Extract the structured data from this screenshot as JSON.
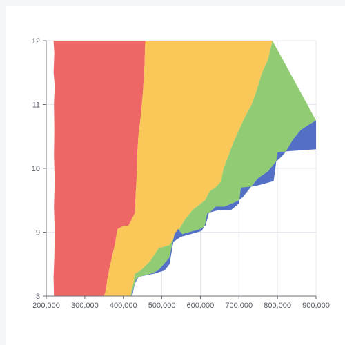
{
  "chart_data": {
    "type": "area",
    "title": "",
    "xlabel": "",
    "ylabel": "",
    "xlim": [
      200000,
      900000
    ],
    "ylim": [
      8,
      12
    ],
    "grid": true,
    "legend": "none",
    "x_ticks": [
      "200,000",
      "300,000",
      "400,000",
      "500,000",
      "600,000",
      "700,000",
      "800,000",
      "900,000"
    ],
    "x_tick_values": [
      200000,
      300000,
      400000,
      500000,
      600000,
      700000,
      800000,
      900000
    ],
    "y_ticks": [
      "8",
      "9",
      "10",
      "11",
      "12"
    ],
    "y_tick_values": [
      8,
      9,
      10,
      11,
      12
    ],
    "series": [
      {
        "color": "#ee6666",
        "left": [
          [
            219000,
            12
          ],
          [
            221000,
            11.8
          ],
          [
            219000,
            11.5
          ],
          [
            222000,
            11.3
          ],
          [
            220000,
            11
          ],
          [
            221000,
            10.6
          ],
          [
            220000,
            10.2
          ],
          [
            222000,
            9.8
          ],
          [
            220000,
            9.4
          ],
          [
            222000,
            9
          ],
          [
            221000,
            8.6
          ],
          [
            219000,
            8.3
          ],
          [
            220000,
            8
          ]
        ],
        "right": [
          [
            457000,
            12
          ],
          [
            455000,
            11.6
          ],
          [
            451000,
            11.2
          ],
          [
            445000,
            10.8
          ],
          [
            439000,
            10.5
          ],
          [
            436000,
            10.2
          ],
          [
            435000,
            9.9
          ],
          [
            432000,
            9.6
          ],
          [
            430000,
            9.3
          ],
          [
            413000,
            9.1
          ],
          [
            401000,
            9.1
          ],
          [
            385000,
            9.05
          ],
          [
            378000,
            8.8
          ],
          [
            370000,
            8.6
          ],
          [
            363000,
            8.4
          ],
          [
            358000,
            8.25
          ],
          [
            355000,
            8.1
          ],
          [
            350000,
            8
          ]
        ]
      },
      {
        "color": "#fac858",
        "right": [
          [
            787000,
            12
          ],
          [
            775000,
            11.7
          ],
          [
            760000,
            11.5
          ],
          [
            745000,
            11.2
          ],
          [
            733000,
            11
          ],
          [
            715000,
            10.8
          ],
          [
            700000,
            10.6
          ],
          [
            685000,
            10.4
          ],
          [
            673000,
            10.2
          ],
          [
            660000,
            10
          ],
          [
            654000,
            9.8
          ],
          [
            639000,
            9.7
          ],
          [
            625000,
            9.65
          ],
          [
            612000,
            9.5
          ],
          [
            580000,
            9.35
          ],
          [
            560000,
            9.2
          ],
          [
            545000,
            9.05
          ],
          [
            520000,
            8.8
          ],
          [
            492000,
            8.75
          ],
          [
            470000,
            8.55
          ],
          [
            445000,
            8.4
          ],
          [
            430000,
            8.35
          ],
          [
            426000,
            8.2
          ],
          [
            418000,
            8
          ]
        ]
      },
      {
        "color": "#91cc75",
        "right": [
          [
            900000,
            10.75
          ],
          [
            880000,
            10.68
          ],
          [
            860000,
            10.6
          ],
          [
            840000,
            10.45
          ],
          [
            820000,
            10.25
          ],
          [
            808000,
            10.17
          ],
          [
            795000,
            10.1
          ],
          [
            775000,
            9.95
          ],
          [
            750000,
            9.85
          ],
          [
            730000,
            9.7
          ],
          [
            710000,
            9.55
          ],
          [
            700000,
            9.5
          ],
          [
            682000,
            9.45
          ],
          [
            662000,
            9.4
          ],
          [
            640000,
            9.4
          ],
          [
            622000,
            9.3
          ],
          [
            613000,
            9.1
          ],
          [
            600000,
            9.05
          ],
          [
            570000,
            9
          ],
          [
            553000,
            8.97
          ],
          [
            542000,
            9.05
          ],
          [
            533000,
            8.97
          ],
          [
            519000,
            8.6
          ],
          [
            505000,
            8.5
          ],
          [
            490000,
            8.4
          ],
          [
            472000,
            8.35
          ],
          [
            440000,
            8.3
          ],
          [
            432000,
            8.25
          ],
          [
            421000,
            8
          ]
        ]
      },
      {
        "color": "#5470c6",
        "lower": [
          [
            900000,
            10.3
          ],
          [
            830000,
            10.27
          ],
          [
            800000,
            10.25
          ],
          [
            790000,
            9.8
          ],
          [
            760000,
            9.75
          ],
          [
            740000,
            9.72
          ],
          [
            705000,
            9.7
          ],
          [
            700000,
            9.45
          ],
          [
            680000,
            9.35
          ],
          [
            650000,
            9.35
          ],
          [
            618000,
            9.3
          ],
          [
            611000,
            9.1
          ],
          [
            603000,
            9.02
          ],
          [
            575000,
            8.97
          ],
          [
            550000,
            8.93
          ],
          [
            530000,
            8.85
          ],
          [
            520000,
            8.5
          ],
          [
            507000,
            8.4
          ],
          [
            480000,
            8.35
          ],
          [
            440000,
            8.3
          ],
          [
            430000,
            8.2
          ],
          [
            423000,
            8
          ]
        ]
      }
    ]
  }
}
